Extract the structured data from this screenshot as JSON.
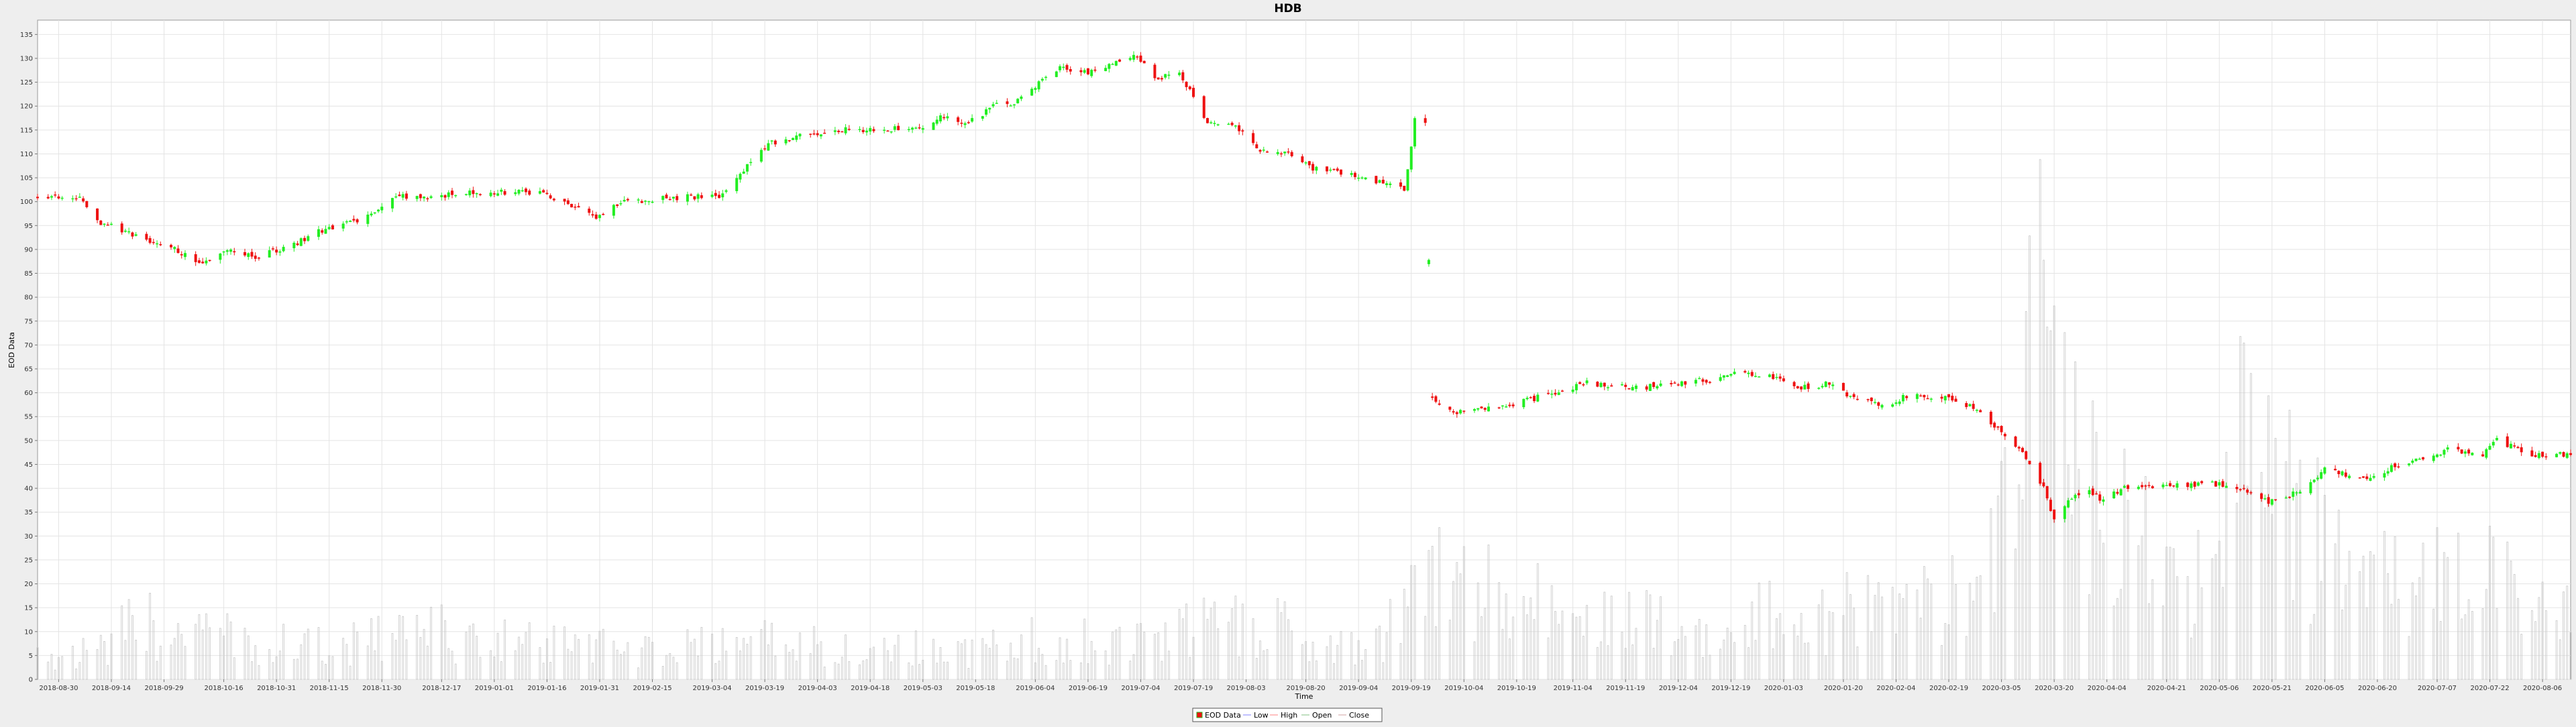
{
  "chart_data": {
    "type": "candlestick",
    "title": "HDB",
    "xlabel": "Time",
    "ylabel": "EOD Data",
    "ylim": [
      0,
      138
    ],
    "yticks": [
      0,
      5,
      10,
      15,
      20,
      25,
      30,
      35,
      40,
      45,
      50,
      55,
      60,
      65,
      70,
      75,
      80,
      85,
      90,
      95,
      100,
      105,
      110,
      115,
      120,
      125,
      130,
      135
    ],
    "x_range": [
      "2018-08-24",
      "2020-08-14"
    ],
    "xticks": [
      "2018-08-30",
      "2018-09-14",
      "2018-09-29",
      "2018-10-16",
      "2018-10-31",
      "2018-11-15",
      "2018-11-30",
      "2018-12-17",
      "2019-01-01",
      "2019-01-16",
      "2019-01-31",
      "2019-02-15",
      "2019-03-04",
      "2019-03-19",
      "2019-04-03",
      "2019-04-18",
      "2019-05-03",
      "2019-05-18",
      "2019-06-04",
      "2019-06-19",
      "2019-07-04",
      "2019-07-19",
      "2019-08-03",
      "2019-08-20",
      "2019-09-04",
      "2019-09-19",
      "2019-10-04",
      "2019-10-19",
      "2019-11-04",
      "2019-11-19",
      "2019-12-04",
      "2019-12-19",
      "2020-01-03",
      "2020-01-20",
      "2020-02-04",
      "2020-02-19",
      "2020-03-05",
      "2020-03-20",
      "2020-04-04",
      "2020-04-21",
      "2020-05-06",
      "2020-05-21",
      "2020-06-05",
      "2020-06-20",
      "2020-07-07",
      "2020-07-22",
      "2020-08-06"
    ],
    "grid": true,
    "legend_position": "bottom",
    "legend": [
      "EOD Data",
      "Low",
      "High",
      "Open",
      "Close"
    ],
    "price_anchors": [
      [
        "2018-08-24",
        101
      ],
      [
        "2018-09-05",
        100.5
      ],
      [
        "2018-09-10",
        96
      ],
      [
        "2018-09-20",
        93
      ],
      [
        "2018-10-02",
        90
      ],
      [
        "2018-10-10",
        87
      ],
      [
        "2018-10-18",
        90
      ],
      [
        "2018-10-25",
        88.5
      ],
      [
        "2018-11-05",
        91
      ],
      [
        "2018-11-13",
        94
      ],
      [
        "2018-11-27",
        97
      ],
      [
        "2018-12-04",
        101
      ],
      [
        "2018-12-14",
        101
      ],
      [
        "2018-12-24",
        102
      ],
      [
        "2019-01-02",
        102
      ],
      [
        "2019-01-14",
        102
      ],
      [
        "2019-01-24",
        99
      ],
      [
        "2019-01-30",
        97
      ],
      [
        "2019-02-07",
        100
      ],
      [
        "2019-02-15",
        100.5
      ],
      [
        "2019-02-25",
        101
      ],
      [
        "2019-03-06",
        101
      ],
      [
        "2019-03-12",
        106
      ],
      [
        "2019-03-20",
        112
      ],
      [
        "2019-03-29",
        114
      ],
      [
        "2019-04-10",
        115
      ],
      [
        "2019-04-18",
        115
      ],
      [
        "2019-05-03",
        115.5
      ],
      [
        "2019-05-08",
        118
      ],
      [
        "2019-05-15",
        116
      ],
      [
        "2019-05-23",
        120
      ],
      [
        "2019-05-30",
        121
      ],
      [
        "2019-06-05",
        125
      ],
      [
        "2019-06-11",
        128
      ],
      [
        "2019-06-21",
        127
      ],
      [
        "2019-07-01",
        130.5
      ],
      [
        "2019-07-03",
        130
      ],
      [
        "2019-07-08",
        126
      ],
      [
        "2019-07-15",
        126.5
      ],
      [
        "2019-07-18",
        123
      ],
      [
        "2019-07-22",
        117
      ],
      [
        "2019-07-31",
        116
      ],
      [
        "2019-08-06",
        111
      ],
      [
        "2019-08-15",
        110
      ],
      [
        "2019-08-22",
        107
      ],
      [
        "2019-09-05",
        105
      ],
      [
        "2019-09-17",
        102.5
      ],
      [
        "2019-09-19",
        112
      ],
      [
        "2019-09-20",
        118
      ],
      [
        "2019-09-23",
        116
      ],
      [
        "2019-09-25",
        58.5
      ],
      [
        "2019-10-01",
        56
      ],
      [
        "2019-10-15",
        57
      ],
      [
        "2019-10-25",
        59
      ],
      [
        "2019-11-08",
        62
      ],
      [
        "2019-11-22",
        61
      ],
      [
        "2019-12-04",
        62
      ],
      [
        "2019-12-16",
        63
      ],
      [
        "2019-12-22",
        64.5
      ],
      [
        "2020-01-02",
        63
      ],
      [
        "2020-01-08",
        61
      ],
      [
        "2020-01-17",
        62
      ],
      [
        "2020-01-22",
        59
      ],
      [
        "2020-02-01",
        57.5
      ],
      [
        "2020-02-08",
        59.5
      ],
      [
        "2020-02-18",
        59
      ],
      [
        "2020-02-26",
        57
      ],
      [
        "2020-03-03",
        53
      ],
      [
        "2020-03-11",
        48
      ],
      [
        "2020-03-17",
        40
      ],
      [
        "2020-03-20",
        33
      ],
      [
        "2020-03-24",
        37
      ],
      [
        "2020-03-29",
        40
      ],
      [
        "2020-04-03",
        37.5
      ],
      [
        "2020-04-09",
        40
      ],
      [
        "2020-04-22",
        40.5
      ],
      [
        "2020-05-04",
        41
      ],
      [
        "2020-05-12",
        40
      ],
      [
        "2020-05-20",
        37
      ],
      [
        "2020-05-28",
        39
      ],
      [
        "2020-06-05",
        44
      ],
      [
        "2020-06-10",
        43
      ],
      [
        "2020-06-15",
        42
      ],
      [
        "2020-06-25",
        44.5
      ],
      [
        "2020-07-03",
        46
      ],
      [
        "2020-07-10",
        48
      ],
      [
        "2020-07-20",
        47
      ],
      [
        "2020-07-24",
        50
      ],
      [
        "2020-08-03",
        47
      ],
      [
        "2020-08-14",
        47
      ]
    ],
    "volume_anchors": [
      [
        "2018-08-24",
        7
      ],
      [
        "2018-09-12",
        8
      ],
      [
        "2018-09-20",
        16
      ],
      [
        "2018-10-15",
        12
      ],
      [
        "2018-11-15",
        9
      ],
      [
        "2018-12-10",
        14
      ],
      [
        "2019-01-15",
        10
      ],
      [
        "2019-02-15",
        8
      ],
      [
        "2019-03-20",
        11
      ],
      [
        "2019-04-15",
        9
      ],
      [
        "2019-05-15",
        8
      ],
      [
        "2019-06-10",
        12
      ],
      [
        "2019-07-05",
        10
      ],
      [
        "2019-07-25",
        16
      ],
      [
        "2019-08-20",
        14
      ],
      [
        "2019-09-10",
        11
      ],
      [
        "2019-09-25",
        28
      ],
      [
        "2019-10-20",
        22
      ],
      [
        "2019-11-20",
        17
      ],
      [
        "2019-12-20",
        16
      ],
      [
        "2020-01-10",
        20
      ],
      [
        "2020-02-01",
        19
      ],
      [
        "2020-02-25",
        24
      ],
      [
        "2020-03-10",
        58
      ],
      [
        "2020-03-16",
        112
      ],
      [
        "2020-03-25",
        68
      ],
      [
        "2020-04-05",
        44
      ],
      [
        "2020-04-20",
        32
      ],
      [
        "2020-05-05",
        28
      ],
      [
        "2020-05-14",
        72
      ],
      [
        "2020-05-22",
        56
      ],
      [
        "2020-06-06",
        36
      ],
      [
        "2020-06-25",
        26
      ],
      [
        "2020-07-20",
        28
      ],
      [
        "2020-08-14",
        18
      ]
    ],
    "colors": {
      "up": "#22ee22",
      "down": "#ee1111",
      "volume": "#c8c8c8",
      "grid": "#e4e4e4",
      "plot_background": "#ffffff",
      "page_background": "#eeeeee",
      "axis": "#777777",
      "text": "#000000",
      "legend_low": "#8080ff",
      "legend_high": "#ff8080",
      "legend_open": "#80c080",
      "legend_close": "#d0a0a0"
    }
  }
}
